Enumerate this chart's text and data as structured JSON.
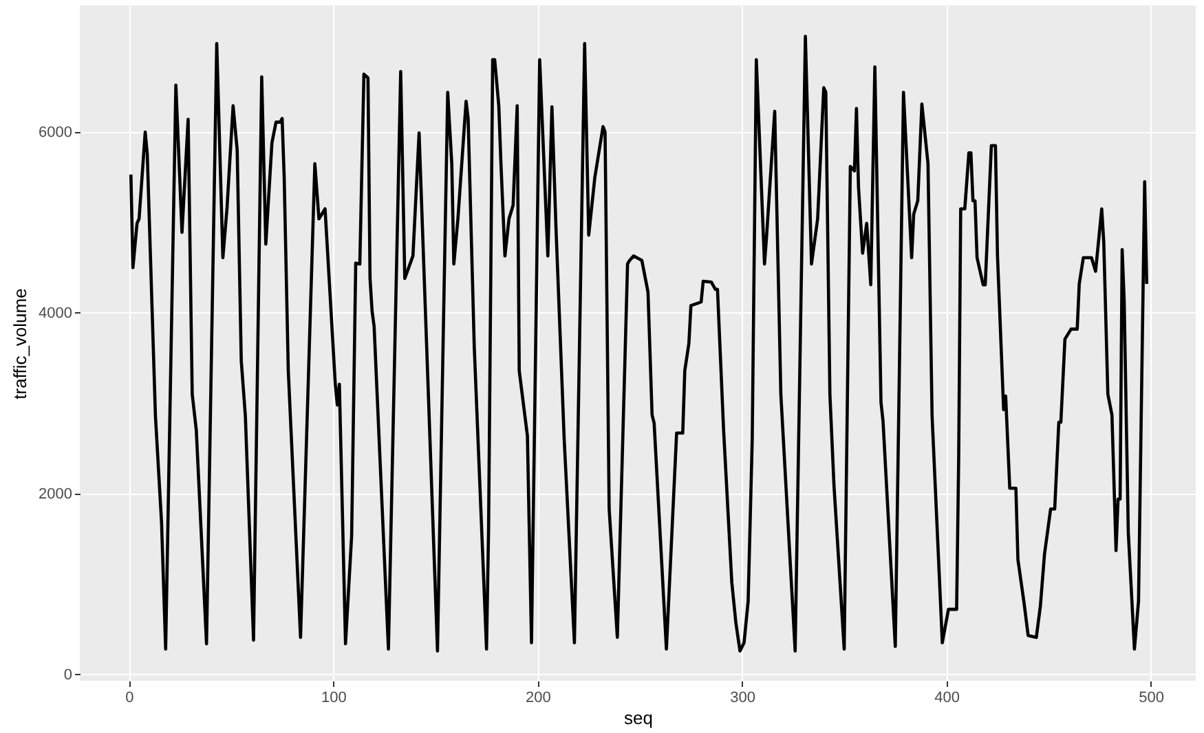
{
  "chart_data": {
    "type": "line",
    "xlabel": "seq",
    "ylabel": "traffic_volume",
    "xlim": [
      -24,
      522
    ],
    "ylim": [
      -70,
      7400
    ],
    "xticks": [
      0,
      100,
      200,
      300,
      400,
      500
    ],
    "yticks": [
      0,
      2000,
      4000,
      6000
    ],
    "grid": true,
    "x": [
      1,
      2,
      4,
      5,
      8,
      9,
      13,
      16,
      18,
      23,
      26,
      29,
      31,
      33,
      38,
      43,
      46,
      48,
      51,
      53,
      55,
      57,
      61,
      65,
      67,
      70,
      72,
      74,
      75,
      76,
      78,
      84,
      91,
      93,
      96,
      101,
      102,
      103,
      106,
      109,
      111,
      113,
      115,
      117,
      118,
      119,
      120,
      127,
      133,
      135,
      139,
      142,
      151,
      156,
      158,
      159,
      161,
      165,
      166,
      169,
      175,
      176,
      178,
      179,
      181,
      182,
      184,
      186,
      188,
      190,
      191,
      195,
      197,
      201,
      205,
      207,
      209,
      213,
      218,
      223,
      225,
      228,
      232,
      233,
      235,
      239,
      244,
      245,
      247,
      251,
      254,
      256,
      257,
      263,
      268,
      271,
      272,
      274,
      275,
      280,
      281,
      285,
      287,
      288,
      291,
      295,
      297,
      299,
      301,
      303,
      305,
      307,
      311,
      312,
      316,
      319,
      326,
      331,
      334,
      337,
      340,
      341,
      343,
      345,
      350,
      353,
      355,
      356,
      357,
      359,
      361,
      363,
      365,
      368,
      369,
      375,
      379,
      383,
      384,
      386,
      388,
      391,
      393,
      398,
      401,
      405,
      406,
      407,
      409,
      411,
      412,
      413,
      414,
      415,
      418,
      419,
      422,
      424,
      425,
      428,
      429,
      431,
      434,
      435,
      438,
      440,
      444,
      446,
      448,
      451,
      453,
      455,
      456,
      458,
      461,
      464,
      465,
      467,
      471,
      473,
      476,
      477,
      479,
      481,
      483,
      484,
      485,
      486,
      487,
      489,
      492,
      494,
      497,
      498
    ],
    "series": [
      {
        "color": "#000000",
        "values": [
          5530,
          4500,
          4990,
          5040,
          6000,
          5760,
          2860,
          1680,
          280,
          6520,
          4890,
          6140,
          3100,
          2700,
          340,
          6980,
          4610,
          5150,
          6290,
          5800,
          3470,
          2860,
          380,
          6610,
          4760,
          5880,
          6110,
          6110,
          6150,
          5500,
          3360,
          410,
          5650,
          5040,
          5150,
          3210,
          2980,
          3210,
          340,
          1530,
          4550,
          4540,
          6640,
          6600,
          4380,
          4020,
          3850,
          280,
          6670,
          4380,
          4630,
          5990,
          260,
          6440,
          5650,
          4540,
          5040,
          6340,
          6150,
          3620,
          280,
          1600,
          6800,
          6800,
          6290,
          5680,
          4630,
          5040,
          5190,
          6290,
          3360,
          2640,
          350,
          6800,
          4630,
          6280,
          4930,
          2600,
          350,
          6980,
          4860,
          5500,
          6060,
          6000,
          1830,
          410,
          4540,
          4580,
          4630,
          4580,
          4230,
          2870,
          2780,
          280,
          2670,
          2670,
          3360,
          3660,
          4080,
          4120,
          4350,
          4340,
          4260,
          4260,
          2700,
          1020,
          570,
          260,
          350,
          810,
          2600,
          6800,
          4540,
          4840,
          6230,
          3100,
          260,
          7060,
          4540,
          5040,
          6490,
          6440,
          3100,
          2090,
          280,
          5620,
          5570,
          6260,
          5390,
          4660,
          4990,
          4310,
          6720,
          3010,
          2800,
          310,
          6440,
          4610,
          5090,
          5240,
          6310,
          5650,
          2860,
          350,
          720,
          720,
          2370,
          5150,
          5150,
          5770,
          5770,
          5240,
          5240,
          4610,
          4310,
          4310,
          5850,
          5850,
          4630,
          2930,
          3080,
          2060,
          2060,
          1270,
          790,
          430,
          410,
          760,
          1330,
          1830,
          1830,
          2790,
          2790,
          3710,
          3820,
          3820,
          4320,
          4610,
          4610,
          4460,
          5150,
          4780,
          3100,
          2870,
          1370,
          1940,
          1940,
          4700,
          4120,
          1570,
          280,
          810,
          5450,
          4320
        ]
      }
    ]
  }
}
